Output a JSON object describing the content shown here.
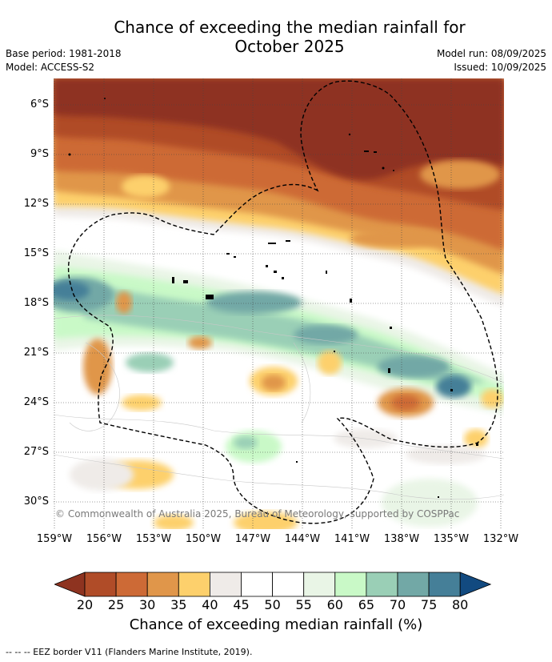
{
  "title_line1": "Chance of exceeding the median rainfall for",
  "title_line2": "October 2025",
  "base_period": "Base period: 1981-2018",
  "model": "Model: ACCESS-S2",
  "model_run": "Model run: 08/09/2025",
  "issued": "Issued: 10/09/2025",
  "lat_labels": [
    "6°S",
    "9°S",
    "12°S",
    "15°S",
    "18°S",
    "21°S",
    "24°S",
    "27°S",
    "30°S"
  ],
  "lon_labels": [
    "159°W",
    "156°W",
    "153°W",
    "150°W",
    "147°W",
    "144°W",
    "141°W",
    "138°W",
    "135°W",
    "132°W"
  ],
  "copyright": "© Commonwealth of Australia 2025, Bureau of Meteorology, supported by COSPPac",
  "colorbar": {
    "ticks": [
      "20",
      "25",
      "30",
      "35",
      "40",
      "45",
      "50",
      "55",
      "60",
      "65",
      "70",
      "75",
      "80"
    ],
    "colors": [
      "#8e3320",
      "#b04c28",
      "#cd6a36",
      "#e0964a",
      "#fdd06c",
      "#efebe8",
      "#ffffff",
      "#ffffff",
      "#e9f5e6",
      "#c9f9c7",
      "#9acfb6",
      "#72a8a6",
      "#457f98",
      "#124a80"
    ],
    "label": "Chance of exceeding median rainfall (%)"
  },
  "footnote": "--  --  -- EEZ border V11 (Flanders Marine Institute, 2019)."
}
